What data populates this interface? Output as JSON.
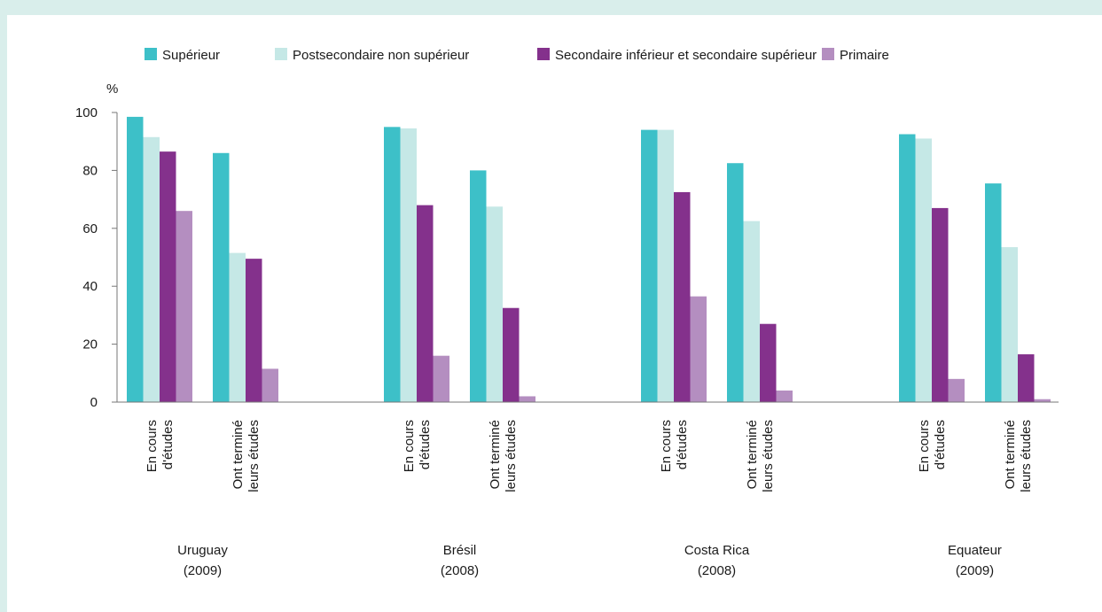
{
  "chart_data": {
    "type": "bar",
    "ylabel": "%",
    "ylim": [
      0,
      100
    ],
    "yticks": [
      0,
      20,
      40,
      60,
      80,
      100
    ],
    "grid": false,
    "legend_position": "top",
    "series": [
      {
        "name": "Supérieur",
        "color": "#3dc0c8"
      },
      {
        "name": "Postsecondaire non supérieur",
        "color": "#c5e8e6"
      },
      {
        "name": "Secondaire inférieur et secondaire supérieur",
        "color": "#84318c"
      },
      {
        "name": "Primaire",
        "color": "#b48ec0"
      }
    ],
    "groups": [
      {
        "label_line1": "Uruguay",
        "label_line2": "(2009)",
        "categories": [
          {
            "line1": "En cours",
            "line2": "d'études",
            "values": [
              98.5,
              91.5,
              86.5,
              66
            ]
          },
          {
            "line1": "Ont terminé",
            "line2": "leurs études",
            "values": [
              86,
              51.5,
              49.5,
              11.5
            ]
          }
        ]
      },
      {
        "label_line1": "Brésil",
        "label_line2": "(2008)",
        "categories": [
          {
            "line1": "En cours",
            "line2": "d'études",
            "values": [
              95,
              94.5,
              68,
              16
            ]
          },
          {
            "line1": "Ont terminé",
            "line2": "leurs études",
            "values": [
              80,
              67.5,
              32.5,
              2
            ]
          }
        ]
      },
      {
        "label_line1": "Costa Rica",
        "label_line2": "(2008)",
        "categories": [
          {
            "line1": "En cours",
            "line2": "d'études",
            "values": [
              94,
              94,
              72.5,
              36.5
            ]
          },
          {
            "line1": "Ont terminé",
            "line2": "leurs études",
            "values": [
              82.5,
              62.5,
              27,
              4
            ]
          }
        ]
      },
      {
        "label_line1": "Equateur",
        "label_line2": "(2009)",
        "categories": [
          {
            "line1": "En cours",
            "line2": "d'études",
            "values": [
              92.5,
              91,
              67,
              8
            ]
          },
          {
            "line1": "Ont terminé",
            "line2": "leurs études",
            "values": [
              75.5,
              53.5,
              16.5,
              1
            ]
          }
        ]
      }
    ]
  }
}
